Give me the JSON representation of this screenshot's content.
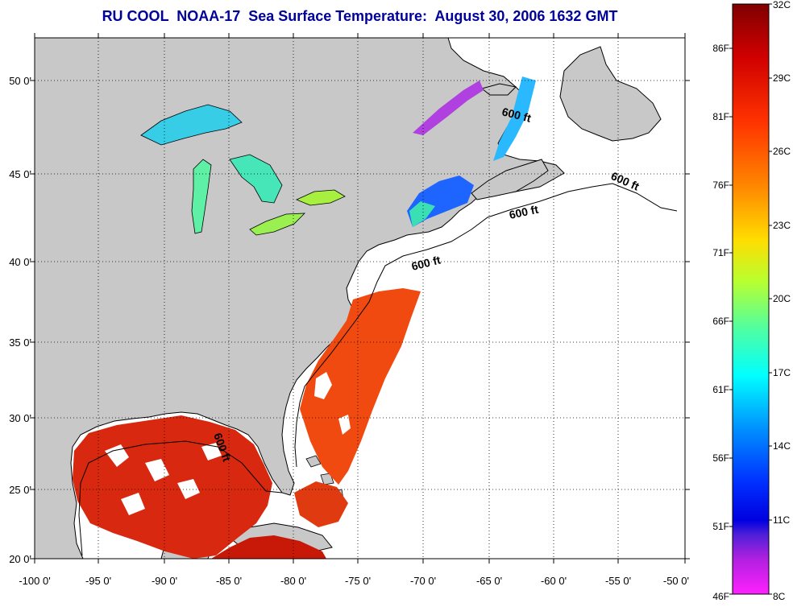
{
  "title": "RU COOL  NOAA-17  Sea Surface Temperature:  August 30, 2006 1632 GMT",
  "map": {
    "lon_ticks": [
      "-100 0'",
      "-95 0'",
      "-90 0'",
      "-85 0'",
      "-80 0'",
      "-75 0'",
      "-70 0'",
      "-65 0'",
      "-60 0'",
      "-55 0'",
      "-50 0'"
    ],
    "lat_ticks": [
      "50 0'",
      "45 0'",
      "40 0'",
      "35 0'",
      "30 0'",
      "25 0'",
      "20 0'"
    ],
    "isobath_label": "600 ft",
    "colors": {
      "land": "#c8c8c8",
      "ocean_no_data": "#ffffff",
      "title": "#00009b"
    }
  },
  "colorbar": {
    "celsius_labels": [
      "32C",
      "29C",
      "26C",
      "23C",
      "20C",
      "17C",
      "14C",
      "11C",
      "8C"
    ],
    "fahrenheit_labels": [
      "86F",
      "81F",
      "76F",
      "71F",
      "66F",
      "61F",
      "56F",
      "51F",
      "46F"
    ]
  }
}
